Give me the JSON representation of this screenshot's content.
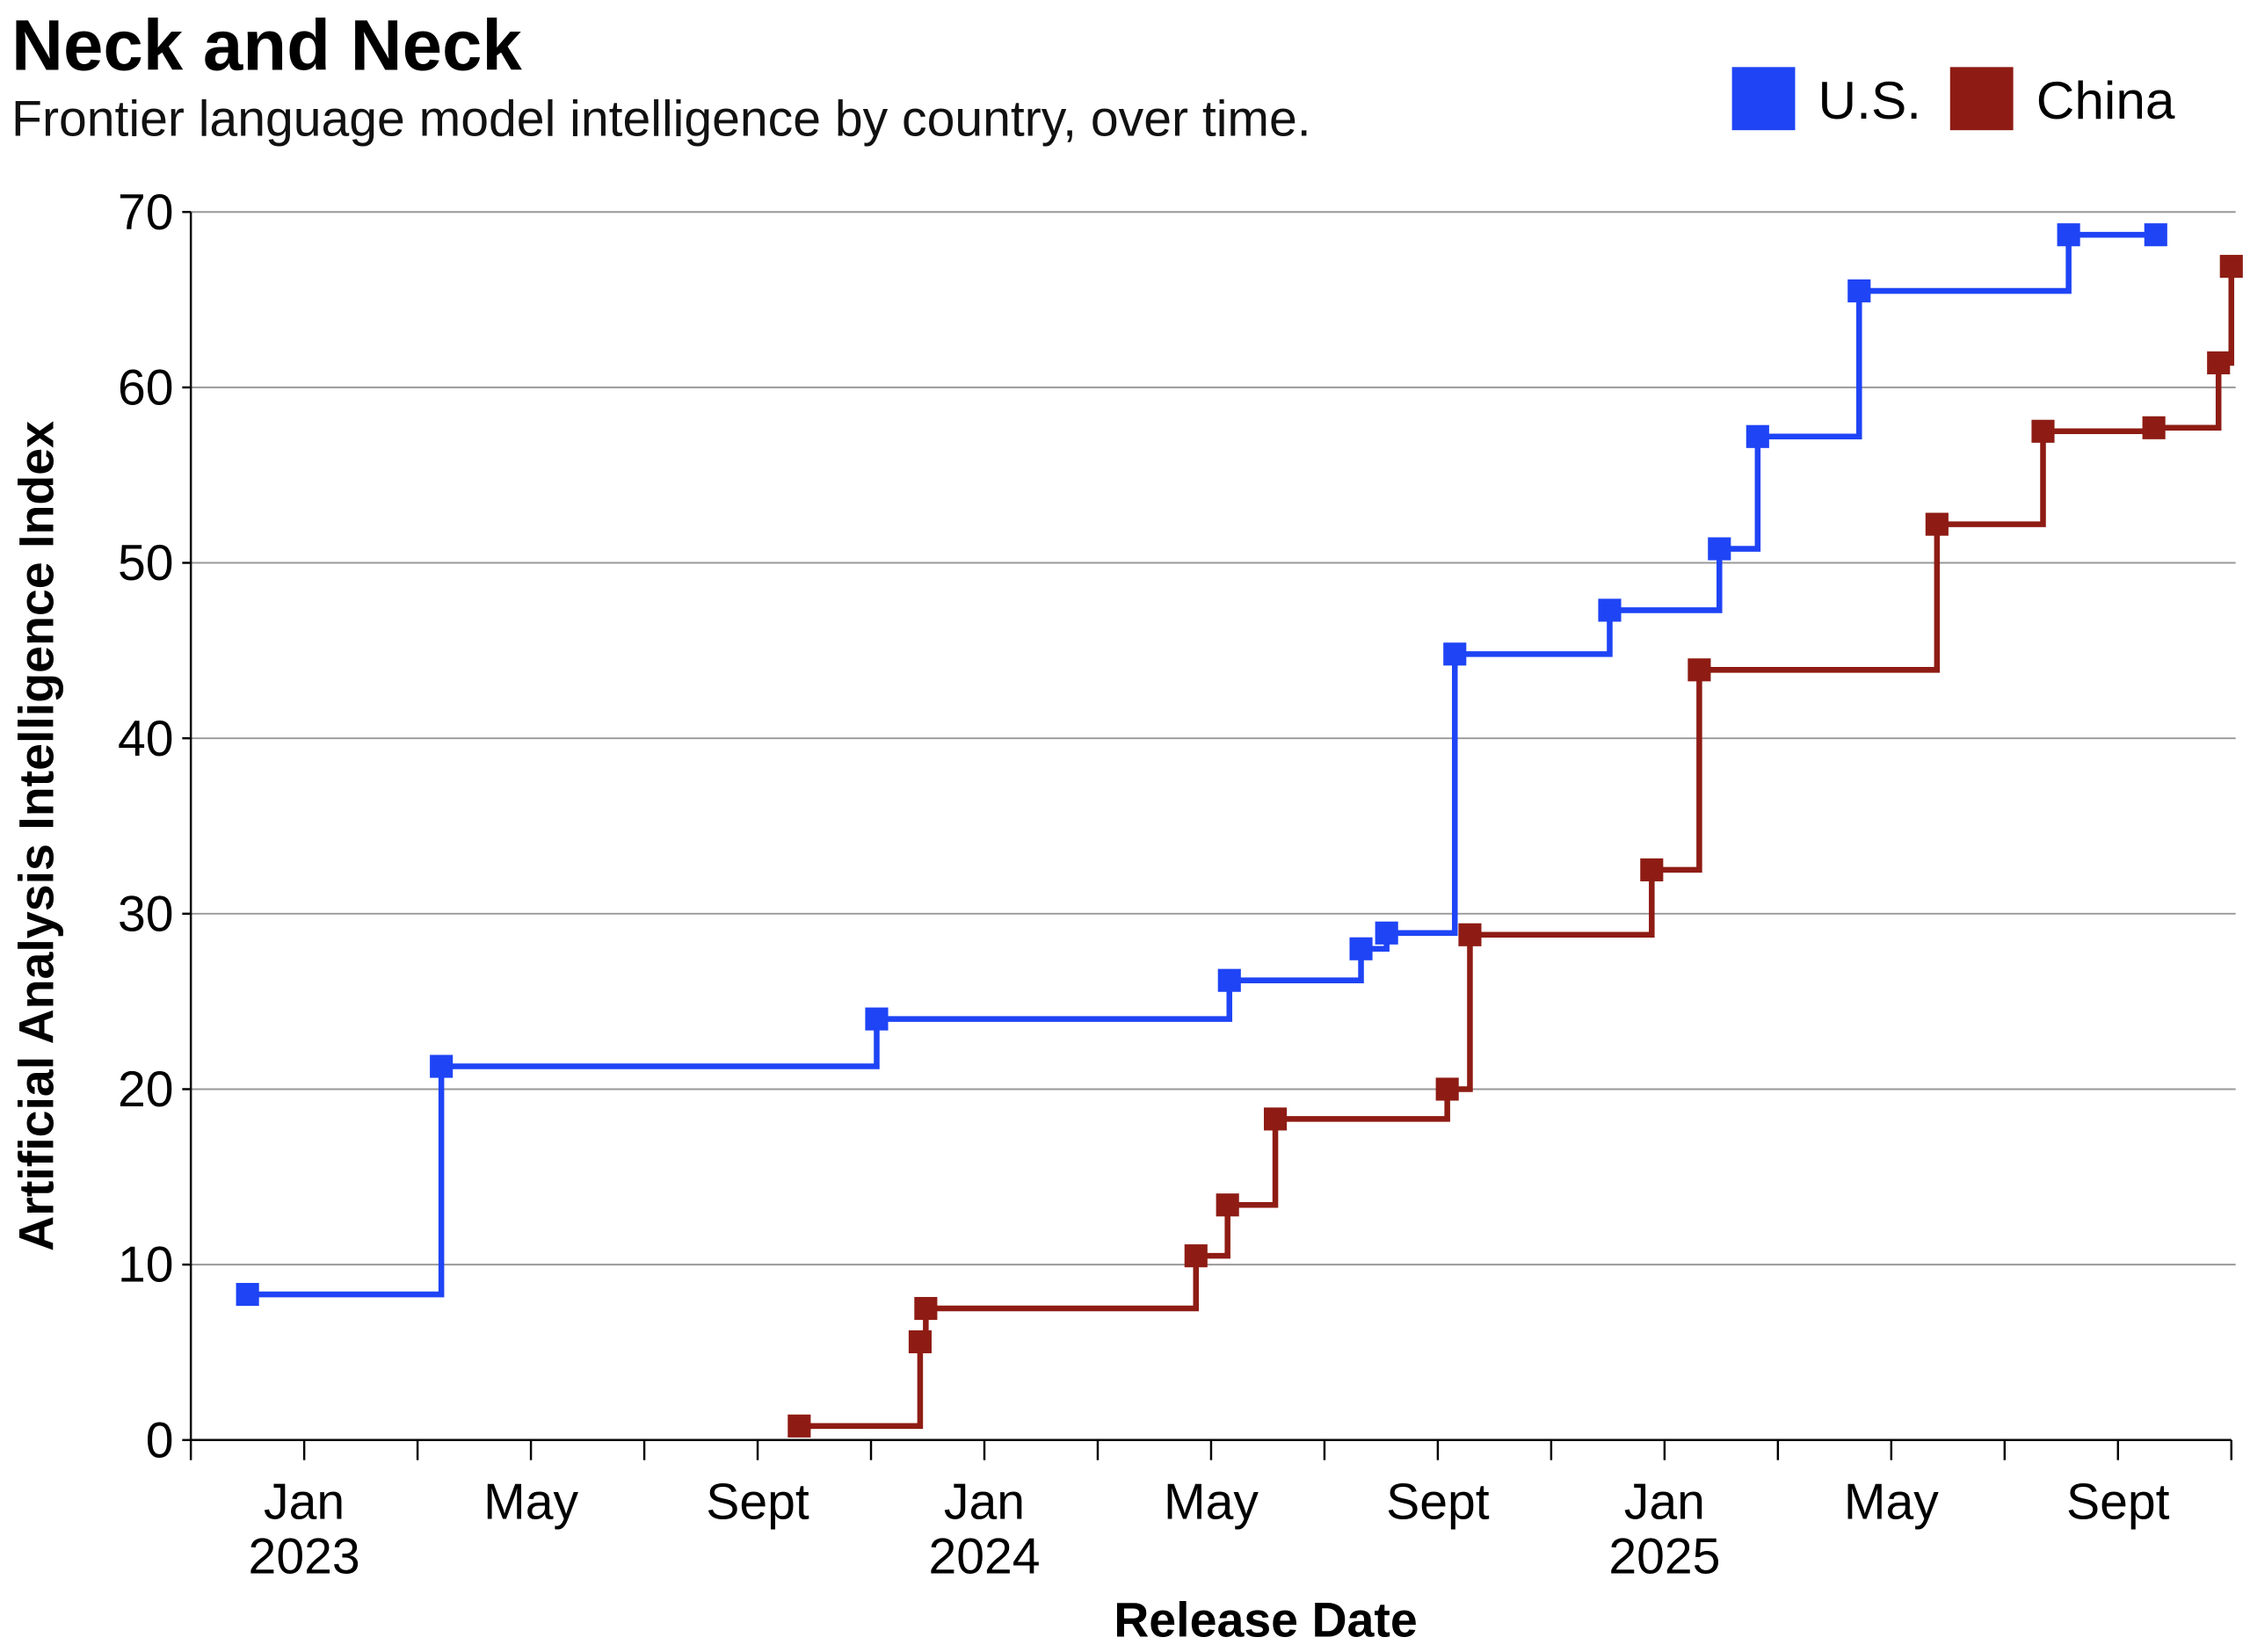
{
  "chart_data": {
    "type": "line",
    "step": "after",
    "title": "Neck and Neck",
    "subtitle": "Frontier language model intelligence by country, over time.",
    "xlabel": "Release Date",
    "ylabel": "Artificial Analysis Intelligence Index",
    "xlim": [
      "2022-11-01",
      "2025-11-01"
    ],
    "ylim": [
      0,
      70
    ],
    "yticks": [
      0,
      10,
      20,
      30,
      40,
      50,
      60,
      70
    ],
    "xtick_labels": [
      {
        "date": "2023-01-01",
        "month": "Jan",
        "year": "2023"
      },
      {
        "date": "2023-05-01",
        "month": "May",
        "year": ""
      },
      {
        "date": "2023-09-01",
        "month": "Sept",
        "year": ""
      },
      {
        "date": "2024-01-01",
        "month": "Jan",
        "year": "2024"
      },
      {
        "date": "2024-05-01",
        "month": "May",
        "year": ""
      },
      {
        "date": "2024-09-01",
        "month": "Sept",
        "year": ""
      },
      {
        "date": "2025-01-01",
        "month": "Jan",
        "year": "2025"
      },
      {
        "date": "2025-05-01",
        "month": "May",
        "year": ""
      },
      {
        "date": "2025-09-01",
        "month": "Sept",
        "year": ""
      }
    ],
    "grid": true,
    "legend_position": "top-right",
    "series": [
      {
        "name": "U.S.",
        "color": "#1F44F5",
        "x": [
          "2022-12-01",
          "2023-03-14",
          "2023-11-04",
          "2024-05-11",
          "2024-07-21",
          "2024-08-04",
          "2024-09-10",
          "2024-12-02",
          "2025-01-31",
          "2025-02-19",
          "2025-04-14",
          "2025-08-05",
          "2025-09-21"
        ],
        "y": [
          8.3,
          21.3,
          24.0,
          26.2,
          28.0,
          28.9,
          44.8,
          47.3,
          50.8,
          57.2,
          65.5,
          68.7,
          68.7
        ]
      },
      {
        "name": "China",
        "color": "#8E1C14",
        "x": [
          "2023-09-23",
          "2023-11-27",
          "2023-11-30",
          "2024-04-23",
          "2024-05-10",
          "2024-06-05",
          "2024-09-06",
          "2024-09-18",
          "2024-12-25",
          "2025-01-20",
          "2025-05-26",
          "2025-07-22",
          "2025-09-20",
          "2025-10-25",
          "2025-11-01"
        ],
        "y": [
          0.8,
          5.6,
          7.5,
          10.5,
          13.4,
          18.3,
          20.0,
          28.8,
          32.5,
          43.9,
          52.2,
          57.5,
          57.7,
          61.4,
          66.9
        ]
      }
    ]
  }
}
